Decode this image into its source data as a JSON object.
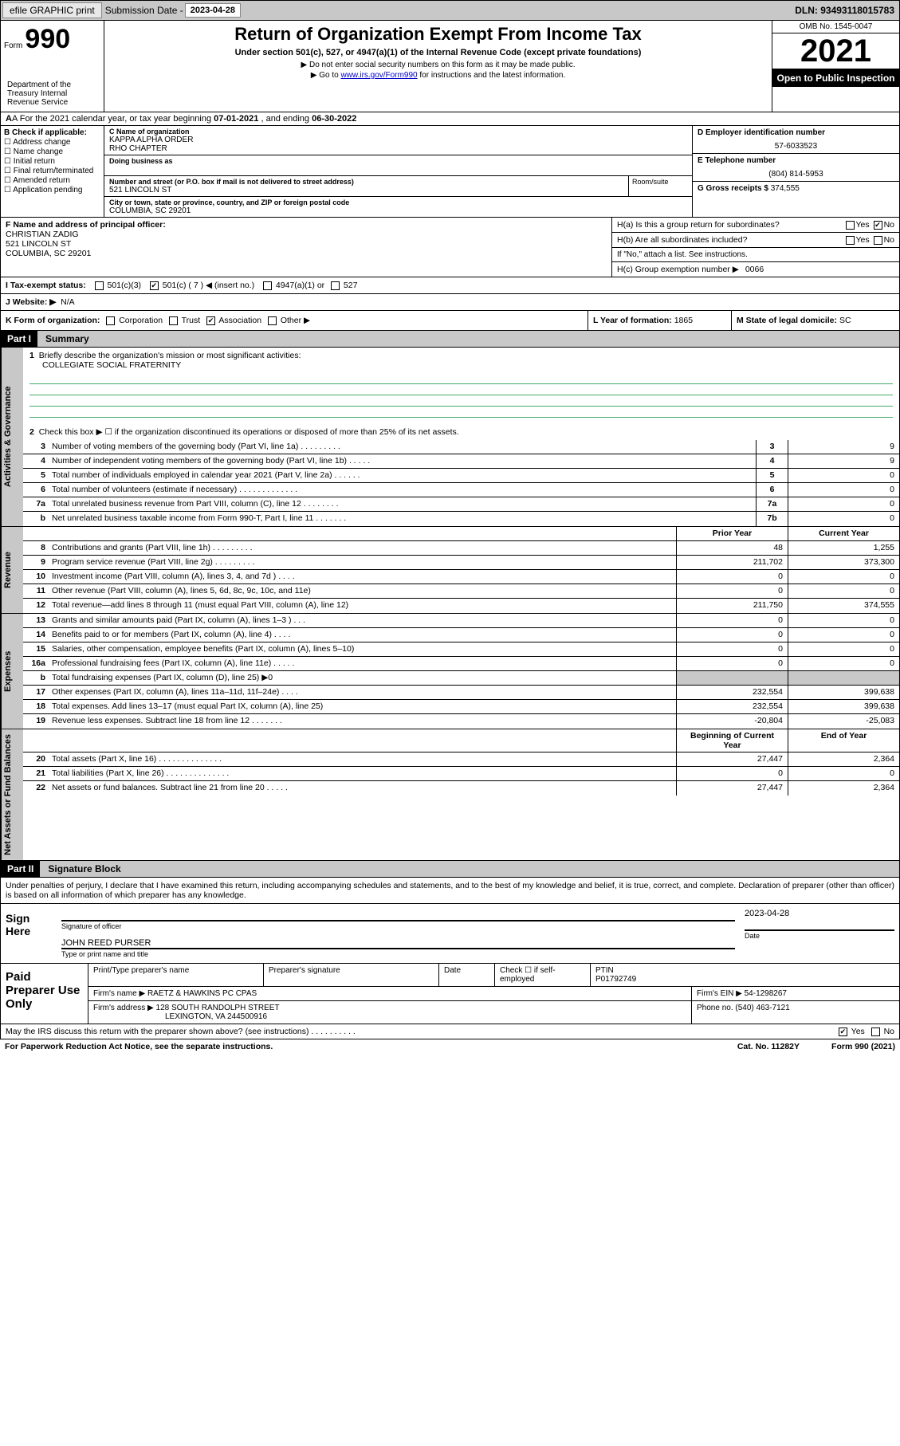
{
  "topbar": {
    "efile": "efile GRAPHIC print",
    "sub_label": "Submission Date - ",
    "sub_date": "2023-04-28",
    "dln": "DLN: 93493118015783"
  },
  "header": {
    "form_word": "Form",
    "form_num": "990",
    "dept": "Department of the Treasury Internal Revenue Service",
    "title": "Return of Organization Exempt From Income Tax",
    "sub1": "Under section 501(c), 527, or 4947(a)(1) of the Internal Revenue Code (except private foundations)",
    "sub2": "▶ Do not enter social security numbers on this form as it may be made public.",
    "sub3_pre": "▶ Go to ",
    "sub3_link": "www.irs.gov/Form990",
    "sub3_post": " for instructions and the latest information.",
    "omb": "OMB No. 1545-0047",
    "year": "2021",
    "open": "Open to Public Inspection"
  },
  "lineA": {
    "pre": "A For the 2021 calendar year, or tax year beginning ",
    "begin": "07-01-2021",
    "mid": " , and ending ",
    "end": "06-30-2022"
  },
  "colB": {
    "label": "B Check if applicable:",
    "items": [
      "Address change",
      "Name change",
      "Initial return",
      "Final return/terminated",
      "Amended return",
      "Application pending"
    ]
  },
  "colC": {
    "name_lab": "C Name of organization",
    "name1": "KAPPA ALPHA ORDER",
    "name2": "RHO CHAPTER",
    "dba_lab": "Doing business as",
    "street_lab": "Number and street (or P.O. box if mail is not delivered to street address)",
    "street": "521 LINCOLN ST",
    "room_lab": "Room/suite",
    "city_lab": "City or town, state or province, country, and ZIP or foreign postal code",
    "city": "COLUMBIA, SC  29201"
  },
  "colD": {
    "ein_lab": "D Employer identification number",
    "ein": "57-6033523",
    "tel_lab": "E Telephone number",
    "tel": "(804) 814-5953",
    "gross_lab": "G Gross receipts $",
    "gross": "374,555"
  },
  "f": {
    "lab": "F Name and address of principal officer:",
    "name": "CHRISTIAN ZADIG",
    "street": "521 LINCOLN ST",
    "city": "COLUMBIA, SC  29201"
  },
  "h": {
    "a": "H(a)  Is this a group return for subordinates?",
    "b": "H(b)  Are all subordinates included?",
    "b2": "If \"No,\" attach a list. See instructions.",
    "c_lab": "H(c)  Group exemption number ▶",
    "c_val": "0066",
    "yes": "Yes",
    "no": "No"
  },
  "i": {
    "lab": "I   Tax-exempt status:",
    "c3": "501(c)(3)",
    "c": "501(c) ( 7 ) ◀ (insert no.)",
    "a1": "4947(a)(1) or",
    "s527": "527"
  },
  "j": {
    "lab": "J   Website: ▶",
    "val": "N/A"
  },
  "k": {
    "lab": "K Form of organization:",
    "corp": "Corporation",
    "trust": "Trust",
    "assoc": "Association",
    "other": "Other ▶"
  },
  "l": {
    "lab": "L Year of formation:",
    "val": "1865"
  },
  "m": {
    "lab": "M State of legal domicile:",
    "val": "SC"
  },
  "part1": {
    "hdr": "Part I",
    "title": "Summary"
  },
  "summary": {
    "q1": "Briefly describe the organization's mission or most significant activities:",
    "q1v": "COLLEGIATE SOCIAL FRATERNITY",
    "q2": "Check this box ▶ ☐  if the organization discontinued its operations or disposed of more than 25% of its net assets.",
    "rows_gov": [
      {
        "n": "3",
        "d": "Number of voting members of the governing body (Part VI, line 1a)  .    .    .    .    .    .    .    .    .",
        "b": "3",
        "v": "9"
      },
      {
        "n": "4",
        "d": "Number of independent voting members of the governing body (Part VI, line 1b)   .    .    .    .    .",
        "b": "4",
        "v": "9"
      },
      {
        "n": "5",
        "d": "Total number of individuals employed in calendar year 2021 (Part V, line 2a)   .    .    .    .    .    .",
        "b": "5",
        "v": "0"
      },
      {
        "n": "6",
        "d": "Total number of volunteers (estimate if necessary)   .    .    .    .    .    .    .    .    .    .    .    .    .",
        "b": "6",
        "v": "0"
      },
      {
        "n": "7a",
        "d": "Total unrelated business revenue from Part VIII, column (C), line 12   .    .    .    .    .    .    .    .",
        "b": "7a",
        "v": "0"
      },
      {
        "n": "b",
        "d": "Net unrelated business taxable income from Form 990-T, Part I, line 11   .    .    .    .    .    .    .",
        "b": "7b",
        "v": "0"
      }
    ],
    "hdr_prior": "Prior Year",
    "hdr_curr": "Current Year",
    "rows_rev": [
      {
        "n": "8",
        "d": "Contributions and grants (Part VIII, line 1h)   .    .    .    .    .    .    .    .    .",
        "p": "48",
        "c": "1,255"
      },
      {
        "n": "9",
        "d": "Program service revenue (Part VIII, line 2g)   .    .    .    .    .    .    .    .    .",
        "p": "211,702",
        "c": "373,300"
      },
      {
        "n": "10",
        "d": "Investment income (Part VIII, column (A), lines 3, 4, and 7d )   .    .    .    .",
        "p": "0",
        "c": "0"
      },
      {
        "n": "11",
        "d": "Other revenue (Part VIII, column (A), lines 5, 6d, 8c, 9c, 10c, and 11e)",
        "p": "0",
        "c": "0"
      },
      {
        "n": "12",
        "d": "Total revenue—add lines 8 through 11 (must equal Part VIII, column (A), line 12)",
        "p": "211,750",
        "c": "374,555"
      }
    ],
    "rows_exp": [
      {
        "n": "13",
        "d": "Grants and similar amounts paid (Part IX, column (A), lines 1–3 )   .    .    .",
        "p": "0",
        "c": "0"
      },
      {
        "n": "14",
        "d": "Benefits paid to or for members (Part IX, column (A), line 4)   .    .    .    .",
        "p": "0",
        "c": "0"
      },
      {
        "n": "15",
        "d": "Salaries, other compensation, employee benefits (Part IX, column (A), lines 5–10)",
        "p": "0",
        "c": "0"
      },
      {
        "n": "16a",
        "d": "Professional fundraising fees (Part IX, column (A), line 11e)   .    .    .    .    .",
        "p": "0",
        "c": "0"
      },
      {
        "n": "b",
        "d": "Total fundraising expenses (Part IX, column (D), line 25) ▶0",
        "p": "",
        "c": "",
        "shade": true
      },
      {
        "n": "17",
        "d": "Other expenses (Part IX, column (A), lines 11a–11d, 11f–24e)   .    .    .    .",
        "p": "232,554",
        "c": "399,638"
      },
      {
        "n": "18",
        "d": "Total expenses. Add lines 13–17 (must equal Part IX, column (A), line 25)",
        "p": "232,554",
        "c": "399,638"
      },
      {
        "n": "19",
        "d": "Revenue less expenses. Subtract line 18 from line 12   .    .    .    .    .    .    .",
        "p": "-20,804",
        "c": "-25,083"
      }
    ],
    "hdr_boy": "Beginning of Current Year",
    "hdr_eoy": "End of Year",
    "rows_na": [
      {
        "n": "20",
        "d": "Total assets (Part X, line 16)   .    .    .    .    .    .    .    .    .    .    .    .    .    .",
        "p": "27,447",
        "c": "2,364"
      },
      {
        "n": "21",
        "d": "Total liabilities (Part X, line 26)   .    .    .    .    .    .    .    .    .    .    .    .    .    .",
        "p": "0",
        "c": "0"
      },
      {
        "n": "22",
        "d": "Net assets or fund balances. Subtract line 21 from line 20   .    .    .    .    .",
        "p": "27,447",
        "c": "2,364"
      }
    ]
  },
  "sides": {
    "gov": "Activities & Governance",
    "rev": "Revenue",
    "exp": "Expenses",
    "na": "Net Assets or Fund Balances"
  },
  "part2": {
    "hdr": "Part II",
    "title": "Signature Block"
  },
  "sig": {
    "intro": "Under penalties of perjury, I declare that I have examined this return, including accompanying schedules and statements, and to the best of my knowledge and belief, it is true, correct, and complete. Declaration of preparer (other than officer) is based on all information of which preparer has any knowledge.",
    "here": "Sign Here",
    "sig_of": "Signature of officer",
    "date_lab": "Date",
    "date": "2023-04-28",
    "name": "JOHN REED  PURSER",
    "name_lab": "Type or print name and title"
  },
  "pp": {
    "label": "Paid Preparer Use Only",
    "h1": "Print/Type preparer's name",
    "h2": "Preparer's signature",
    "h3": "Date",
    "h4_a": "Check ☐ if self-employed",
    "h4_b": "PTIN",
    "ptin": "P01792749",
    "firm_lab": "Firm's name    ▶",
    "firm": "RAETZ & HAWKINS PC CPAS",
    "ein_lab": "Firm's EIN ▶",
    "ein": "54-1298267",
    "addr_lab": "Firm's address ▶",
    "addr1": "128 SOUTH RANDOLPH STREET",
    "addr2": "LEXINGTON, VA  244500916",
    "ph_lab": "Phone no.",
    "ph": "(540) 463-7121"
  },
  "foot": {
    "discuss": "May the IRS discuss this return with the preparer shown above? (see instructions)   .    .    .    .    .    .    .    .    .    .",
    "yes": "Yes",
    "no": "No",
    "pra": "For Paperwork Reduction Act Notice, see the separate instructions.",
    "cat": "Cat. No. 11282Y",
    "form": "Form 990 (2021)"
  }
}
